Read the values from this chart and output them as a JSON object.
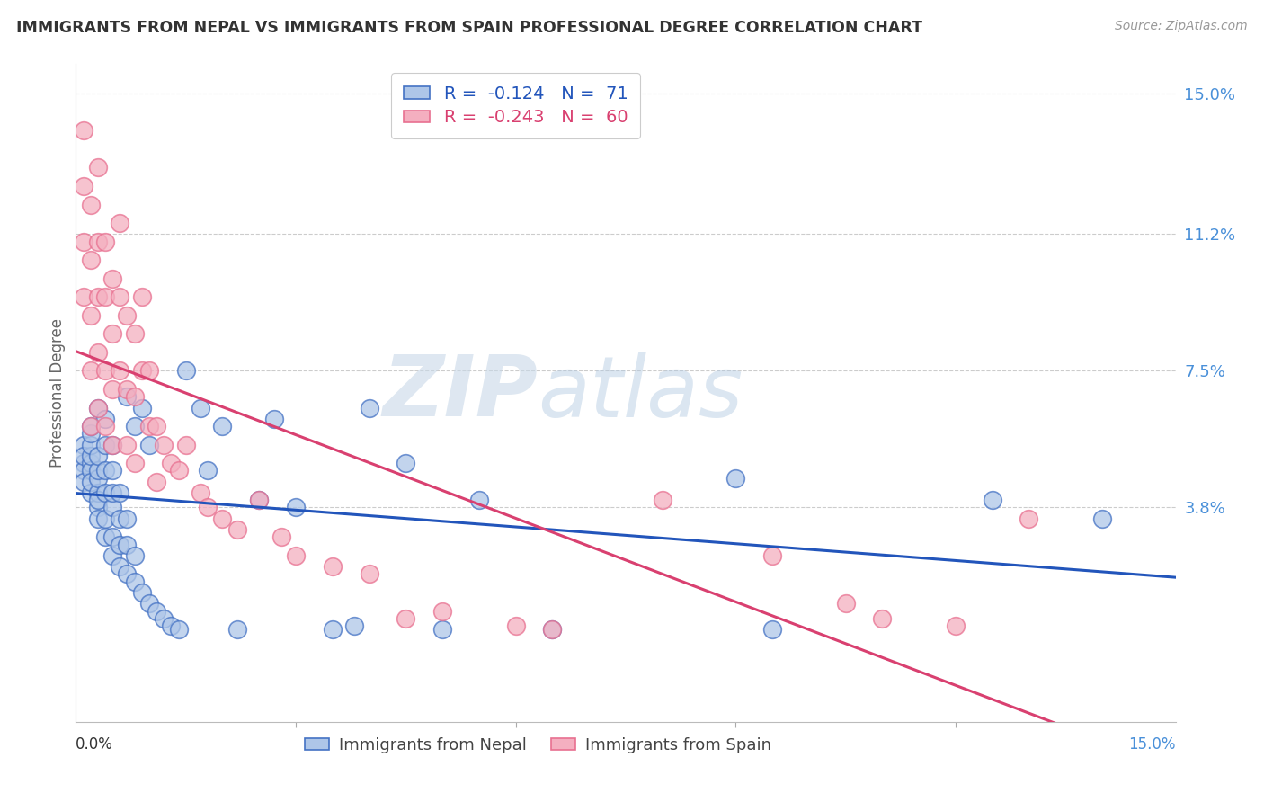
{
  "title": "IMMIGRANTS FROM NEPAL VS IMMIGRANTS FROM SPAIN PROFESSIONAL DEGREE CORRELATION CHART",
  "source": "Source: ZipAtlas.com",
  "ylabel": "Professional Degree",
  "ytick_vals": [
    0.15,
    0.112,
    0.075,
    0.038
  ],
  "ytick_labels": [
    "15.0%",
    "11.2%",
    "7.5%",
    "3.8%"
  ],
  "xmin": 0.0,
  "xmax": 0.15,
  "ymin": -0.02,
  "ymax": 0.158,
  "legend_r_nepal": "-0.124",
  "legend_n_nepal": "71",
  "legend_r_spain": "-0.243",
  "legend_n_spain": "60",
  "color_nepal_fill": "#aec6e8",
  "color_nepal_edge": "#4472c4",
  "color_spain_fill": "#f4afc0",
  "color_spain_edge": "#e87090",
  "color_line_nepal": "#2255bb",
  "color_line_spain": "#d94070",
  "watermark_zip": "ZIP",
  "watermark_atlas": "atlas",
  "nepal_x": [
    0.001,
    0.001,
    0.001,
    0.001,
    0.001,
    0.002,
    0.002,
    0.002,
    0.002,
    0.002,
    0.002,
    0.002,
    0.002,
    0.003,
    0.003,
    0.003,
    0.003,
    0.003,
    0.003,
    0.003,
    0.003,
    0.004,
    0.004,
    0.004,
    0.004,
    0.004,
    0.004,
    0.005,
    0.005,
    0.005,
    0.005,
    0.005,
    0.005,
    0.006,
    0.006,
    0.006,
    0.006,
    0.007,
    0.007,
    0.007,
    0.007,
    0.008,
    0.008,
    0.008,
    0.009,
    0.009,
    0.01,
    0.01,
    0.011,
    0.012,
    0.013,
    0.014,
    0.015,
    0.017,
    0.018,
    0.02,
    0.022,
    0.025,
    0.027,
    0.03,
    0.035,
    0.038,
    0.04,
    0.045,
    0.05,
    0.055,
    0.065,
    0.09,
    0.095,
    0.125,
    0.14
  ],
  "nepal_y": [
    0.05,
    0.055,
    0.048,
    0.045,
    0.052,
    0.05,
    0.042,
    0.048,
    0.052,
    0.055,
    0.058,
    0.045,
    0.06,
    0.038,
    0.042,
    0.046,
    0.048,
    0.052,
    0.035,
    0.04,
    0.065,
    0.03,
    0.035,
    0.042,
    0.048,
    0.055,
    0.062,
    0.025,
    0.03,
    0.038,
    0.042,
    0.048,
    0.055,
    0.022,
    0.028,
    0.035,
    0.042,
    0.02,
    0.028,
    0.035,
    0.068,
    0.018,
    0.025,
    0.06,
    0.015,
    0.065,
    0.012,
    0.055,
    0.01,
    0.008,
    0.006,
    0.005,
    0.075,
    0.065,
    0.048,
    0.06,
    0.005,
    0.04,
    0.062,
    0.038,
    0.005,
    0.006,
    0.065,
    0.05,
    0.005,
    0.04,
    0.005,
    0.046,
    0.005,
    0.04,
    0.035
  ],
  "spain_x": [
    0.001,
    0.001,
    0.001,
    0.001,
    0.002,
    0.002,
    0.002,
    0.002,
    0.002,
    0.003,
    0.003,
    0.003,
    0.003,
    0.003,
    0.004,
    0.004,
    0.004,
    0.004,
    0.005,
    0.005,
    0.005,
    0.005,
    0.006,
    0.006,
    0.006,
    0.007,
    0.007,
    0.007,
    0.008,
    0.008,
    0.008,
    0.009,
    0.009,
    0.01,
    0.01,
    0.011,
    0.011,
    0.012,
    0.013,
    0.014,
    0.015,
    0.017,
    0.018,
    0.02,
    0.022,
    0.025,
    0.028,
    0.03,
    0.035,
    0.04,
    0.045,
    0.05,
    0.06,
    0.065,
    0.08,
    0.095,
    0.105,
    0.11,
    0.12,
    0.13
  ],
  "spain_y": [
    0.11,
    0.095,
    0.125,
    0.14,
    0.12,
    0.105,
    0.09,
    0.075,
    0.06,
    0.13,
    0.11,
    0.095,
    0.08,
    0.065,
    0.11,
    0.095,
    0.075,
    0.06,
    0.1,
    0.085,
    0.07,
    0.055,
    0.115,
    0.095,
    0.075,
    0.09,
    0.07,
    0.055,
    0.085,
    0.068,
    0.05,
    0.095,
    0.075,
    0.075,
    0.06,
    0.06,
    0.045,
    0.055,
    0.05,
    0.048,
    0.055,
    0.042,
    0.038,
    0.035,
    0.032,
    0.04,
    0.03,
    0.025,
    0.022,
    0.02,
    0.008,
    0.01,
    0.006,
    0.005,
    0.04,
    0.025,
    0.012,
    0.008,
    0.006,
    0.035
  ]
}
